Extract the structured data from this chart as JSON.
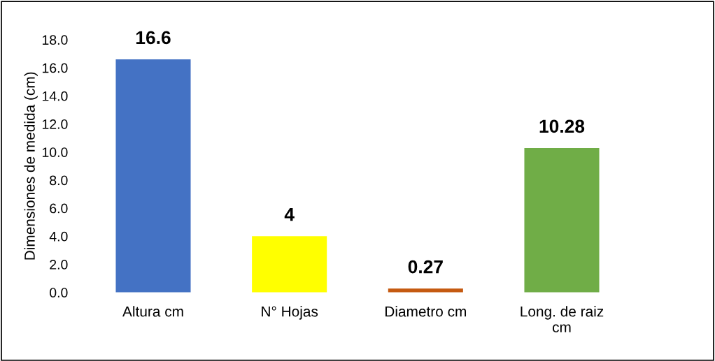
{
  "chart_data": {
    "type": "bar",
    "ylabel": "Dimensiones de medida (cm)",
    "categories": [
      "Altura cm",
      "N° Hojas",
      "Diametro cm",
      "Long. de raiz\ncm"
    ],
    "values": [
      16.6,
      4,
      0.27,
      10.28
    ],
    "colors": [
      "#4472c4",
      "#ffff00",
      "#c55a11",
      "#70ad47"
    ],
    "ylim": [
      0,
      18
    ],
    "yticks": [
      {
        "value": 0,
        "label": "0.0"
      },
      {
        "value": 2,
        "label": "2.0"
      },
      {
        "value": 4,
        "label": "4.0"
      },
      {
        "value": 6,
        "label": "6.0"
      },
      {
        "value": 8,
        "label": "8.0"
      },
      {
        "value": 10,
        "label": "10.0"
      },
      {
        "value": 12,
        "label": "12.0"
      },
      {
        "value": 14,
        "label": "14.0"
      },
      {
        "value": 16,
        "label": "16.0"
      },
      {
        "value": 18,
        "label": "18.0"
      }
    ],
    "data_labels": true,
    "grid": false,
    "legend": false
  }
}
